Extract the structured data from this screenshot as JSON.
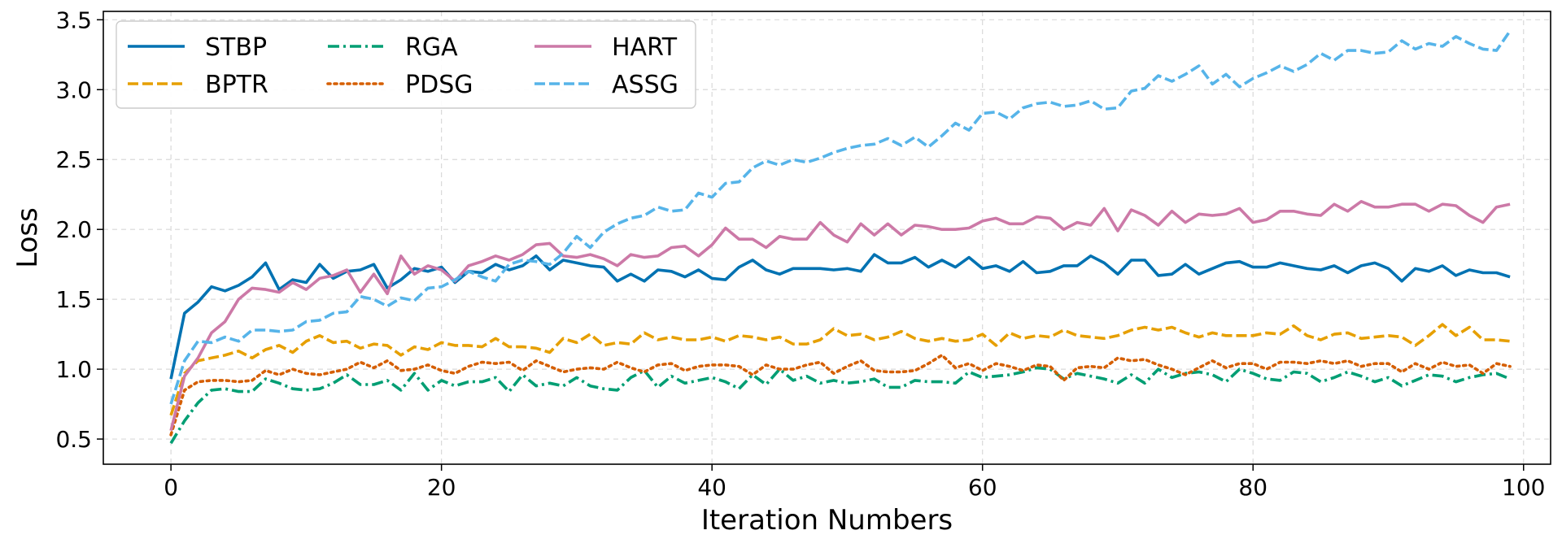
{
  "chart_data": {
    "type": "line",
    "title": "",
    "xlabel": "Iteration Numbers",
    "ylabel": "Loss",
    "xlim": [
      -5,
      102
    ],
    "ylim": [
      0.32,
      3.56
    ],
    "xticks": [
      0,
      20,
      40,
      60,
      80,
      100
    ],
    "yticks": [
      0.5,
      1.0,
      1.5,
      2.0,
      2.5,
      3.0,
      3.5
    ],
    "xtick_labels": [
      "0",
      "20",
      "40",
      "60",
      "80",
      "100"
    ],
    "ytick_labels": [
      "0.5",
      "1.0",
      "1.5",
      "2.0",
      "2.5",
      "3.0",
      "3.5"
    ],
    "grid": true,
    "legend_position": "top-left",
    "x": [
      0,
      1,
      2,
      3,
      4,
      5,
      6,
      7,
      8,
      9,
      10,
      11,
      12,
      13,
      14,
      15,
      16,
      17,
      18,
      19,
      20,
      21,
      22,
      23,
      24,
      25,
      26,
      27,
      28,
      29,
      30,
      31,
      32,
      33,
      34,
      35,
      36,
      37,
      38,
      39,
      40,
      41,
      42,
      43,
      44,
      45,
      46,
      47,
      48,
      49,
      50,
      51,
      52,
      53,
      54,
      55,
      56,
      57,
      58,
      59,
      60,
      61,
      62,
      63,
      64,
      65,
      66,
      67,
      68,
      69,
      70,
      71,
      72,
      73,
      74,
      75,
      76,
      77,
      78,
      79,
      80,
      81,
      82,
      83,
      84,
      85,
      86,
      87,
      88,
      89,
      90,
      91,
      92,
      93,
      94,
      95,
      96,
      97,
      98,
      99
    ],
    "series": [
      {
        "name": "STBP",
        "color": "#0072B2",
        "dash": "solid",
        "values": [
          0.93,
          1.4,
          1.48,
          1.59,
          1.56,
          1.6,
          1.66,
          1.76,
          1.57,
          1.64,
          1.62,
          1.75,
          1.65,
          1.7,
          1.71,
          1.75,
          1.58,
          1.64,
          1.72,
          1.7,
          1.73,
          1.62,
          1.7,
          1.69,
          1.75,
          1.71,
          1.74,
          1.81,
          1.71,
          1.78,
          1.76,
          1.74,
          1.73,
          1.63,
          1.68,
          1.63,
          1.71,
          1.7,
          1.66,
          1.71,
          1.65,
          1.64,
          1.73,
          1.78,
          1.71,
          1.68,
          1.72,
          1.72,
          1.72,
          1.71,
          1.72,
          1.7,
          1.82,
          1.76,
          1.76,
          1.8,
          1.73,
          1.78,
          1.73,
          1.8,
          1.72,
          1.74,
          1.7,
          1.77,
          1.69,
          1.7,
          1.74,
          1.74,
          1.81,
          1.76,
          1.68,
          1.78,
          1.78,
          1.67,
          1.68,
          1.75,
          1.68,
          1.72,
          1.76,
          1.77,
          1.73,
          1.73,
          1.76,
          1.74,
          1.72,
          1.71,
          1.74,
          1.69,
          1.74,
          1.76,
          1.72,
          1.63,
          1.72,
          1.7,
          1.74,
          1.67,
          1.71,
          1.69,
          1.69,
          1.66
        ]
      },
      {
        "name": "BPTR",
        "color": "#E69F00",
        "dash": "dashed",
        "values": [
          0.67,
          0.97,
          1.06,
          1.08,
          1.1,
          1.13,
          1.08,
          1.14,
          1.17,
          1.12,
          1.2,
          1.24,
          1.19,
          1.2,
          1.15,
          1.18,
          1.17,
          1.1,
          1.16,
          1.14,
          1.19,
          1.17,
          1.17,
          1.16,
          1.22,
          1.16,
          1.16,
          1.15,
          1.12,
          1.22,
          1.19,
          1.25,
          1.17,
          1.19,
          1.18,
          1.26,
          1.21,
          1.23,
          1.21,
          1.21,
          1.23,
          1.2,
          1.24,
          1.23,
          1.21,
          1.23,
          1.18,
          1.18,
          1.21,
          1.29,
          1.24,
          1.25,
          1.21,
          1.23,
          1.27,
          1.22,
          1.2,
          1.22,
          1.2,
          1.21,
          1.25,
          1.17,
          1.26,
          1.22,
          1.24,
          1.23,
          1.28,
          1.24,
          1.23,
          1.22,
          1.24,
          1.28,
          1.3,
          1.28,
          1.3,
          1.26,
          1.23,
          1.26,
          1.24,
          1.24,
          1.24,
          1.26,
          1.25,
          1.31,
          1.24,
          1.21,
          1.25,
          1.26,
          1.22,
          1.23,
          1.24,
          1.23,
          1.17,
          1.24,
          1.32,
          1.24,
          1.3,
          1.21,
          1.21,
          1.2
        ]
      },
      {
        "name": "RGA",
        "color": "#009E73",
        "dash": "dashdot",
        "values": [
          0.47,
          0.63,
          0.76,
          0.85,
          0.86,
          0.84,
          0.84,
          0.93,
          0.9,
          0.86,
          0.85,
          0.86,
          0.9,
          0.96,
          0.89,
          0.89,
          0.92,
          0.85,
          0.97,
          0.85,
          0.92,
          0.88,
          0.91,
          0.91,
          0.94,
          0.84,
          0.96,
          0.88,
          0.9,
          0.88,
          0.94,
          0.88,
          0.86,
          0.85,
          0.94,
          0.99,
          0.87,
          0.95,
          0.9,
          0.92,
          0.94,
          0.91,
          0.86,
          0.96,
          0.89,
          1.0,
          0.92,
          0.95,
          0.9,
          0.92,
          0.9,
          0.91,
          0.93,
          0.87,
          0.87,
          0.92,
          0.91,
          0.91,
          0.9,
          0.98,
          0.94,
          0.95,
          0.96,
          0.98,
          1.01,
          1.0,
          0.93,
          0.97,
          0.95,
          0.93,
          0.9,
          0.96,
          0.9,
          1.0,
          0.94,
          0.97,
          0.98,
          0.96,
          0.91,
          1.0,
          0.97,
          0.93,
          0.92,
          0.98,
          0.97,
          0.91,
          0.94,
          0.98,
          0.95,
          0.91,
          0.94,
          0.88,
          0.92,
          0.96,
          0.95,
          0.91,
          0.94,
          0.96,
          0.97,
          0.93
        ]
      },
      {
        "name": "PDSG",
        "color": "#D55E00",
        "dash": "dotted",
        "values": [
          0.53,
          0.85,
          0.91,
          0.92,
          0.92,
          0.91,
          0.92,
          0.99,
          0.96,
          1.0,
          0.97,
          0.96,
          0.98,
          1.0,
          1.05,
          1.01,
          1.06,
          0.99,
          1.0,
          1.03,
          0.99,
          0.97,
          1.02,
          1.05,
          1.04,
          1.05,
          0.99,
          1.06,
          1.02,
          0.98,
          1.0,
          1.01,
          1.0,
          1.05,
          1.01,
          0.98,
          1.03,
          1.04,
          0.99,
          1.02,
          1.03,
          1.03,
          1.02,
          0.96,
          1.03,
          1.0,
          1.0,
          1.03,
          1.05,
          0.97,
          1.02,
          1.06,
          0.99,
          0.98,
          0.98,
          0.99,
          1.04,
          1.1,
          1.01,
          1.04,
          0.99,
          1.04,
          1.02,
          0.99,
          1.03,
          1.02,
          0.92,
          1.01,
          1.02,
          1.01,
          1.08,
          1.06,
          1.07,
          1.03,
          1.0,
          0.96,
          1.01,
          1.06,
          1.01,
          1.04,
          1.04,
          1.0,
          1.05,
          1.05,
          1.04,
          1.06,
          1.04,
          1.06,
          1.02,
          1.04,
          1.04,
          0.98,
          1.04,
          1.0,
          1.05,
          1.02,
          1.03,
          0.97,
          1.04,
          1.02
        ]
      },
      {
        "name": "HART",
        "color": "#CC79A7",
        "dash": "solid",
        "values": [
          0.56,
          0.95,
          1.08,
          1.26,
          1.34,
          1.5,
          1.58,
          1.57,
          1.55,
          1.62,
          1.57,
          1.65,
          1.67,
          1.71,
          1.55,
          1.68,
          1.54,
          1.81,
          1.68,
          1.74,
          1.71,
          1.63,
          1.74,
          1.77,
          1.81,
          1.78,
          1.82,
          1.89,
          1.9,
          1.81,
          1.8,
          1.82,
          1.79,
          1.74,
          1.82,
          1.8,
          1.81,
          1.87,
          1.88,
          1.81,
          1.89,
          2.01,
          1.93,
          1.93,
          1.87,
          1.95,
          1.93,
          1.93,
          2.05,
          1.96,
          1.91,
          2.04,
          1.96,
          2.04,
          1.96,
          2.03,
          2.02,
          2.0,
          2.0,
          2.01,
          2.06,
          2.08,
          2.04,
          2.04,
          2.09,
          2.08,
          2.0,
          2.05,
          2.03,
          2.15,
          1.99,
          2.14,
          2.1,
          2.03,
          2.13,
          2.05,
          2.11,
          2.1,
          2.11,
          2.15,
          2.05,
          2.07,
          2.13,
          2.13,
          2.11,
          2.1,
          2.18,
          2.13,
          2.2,
          2.16,
          2.16,
          2.18,
          2.18,
          2.13,
          2.18,
          2.17,
          2.1,
          2.05,
          2.16,
          2.18
        ]
      },
      {
        "name": "ASSG",
        "color": "#56B4E9",
        "dash": "dashed",
        "values": [
          0.75,
          1.06,
          1.2,
          1.19,
          1.23,
          1.2,
          1.28,
          1.28,
          1.27,
          1.28,
          1.34,
          1.35,
          1.4,
          1.41,
          1.52,
          1.5,
          1.45,
          1.51,
          1.49,
          1.58,
          1.59,
          1.64,
          1.7,
          1.66,
          1.63,
          1.75,
          1.78,
          1.77,
          1.75,
          1.83,
          1.95,
          1.87,
          1.98,
          2.04,
          2.08,
          2.1,
          2.16,
          2.13,
          2.14,
          2.26,
          2.23,
          2.33,
          2.34,
          2.44,
          2.49,
          2.46,
          2.5,
          2.48,
          2.51,
          2.55,
          2.58,
          2.6,
          2.61,
          2.65,
          2.6,
          2.66,
          2.59,
          2.67,
          2.76,
          2.71,
          2.83,
          2.84,
          2.79,
          2.87,
          2.9,
          2.91,
          2.88,
          2.89,
          2.92,
          2.86,
          2.87,
          2.99,
          3.01,
          3.1,
          3.06,
          3.11,
          3.17,
          3.04,
          3.11,
          3.02,
          3.08,
          3.12,
          3.17,
          3.13,
          3.18,
          3.26,
          3.21,
          3.28,
          3.28,
          3.26,
          3.27,
          3.35,
          3.29,
          3.33,
          3.31,
          3.38,
          3.33,
          3.29,
          3.28,
          3.42
        ]
      }
    ]
  }
}
